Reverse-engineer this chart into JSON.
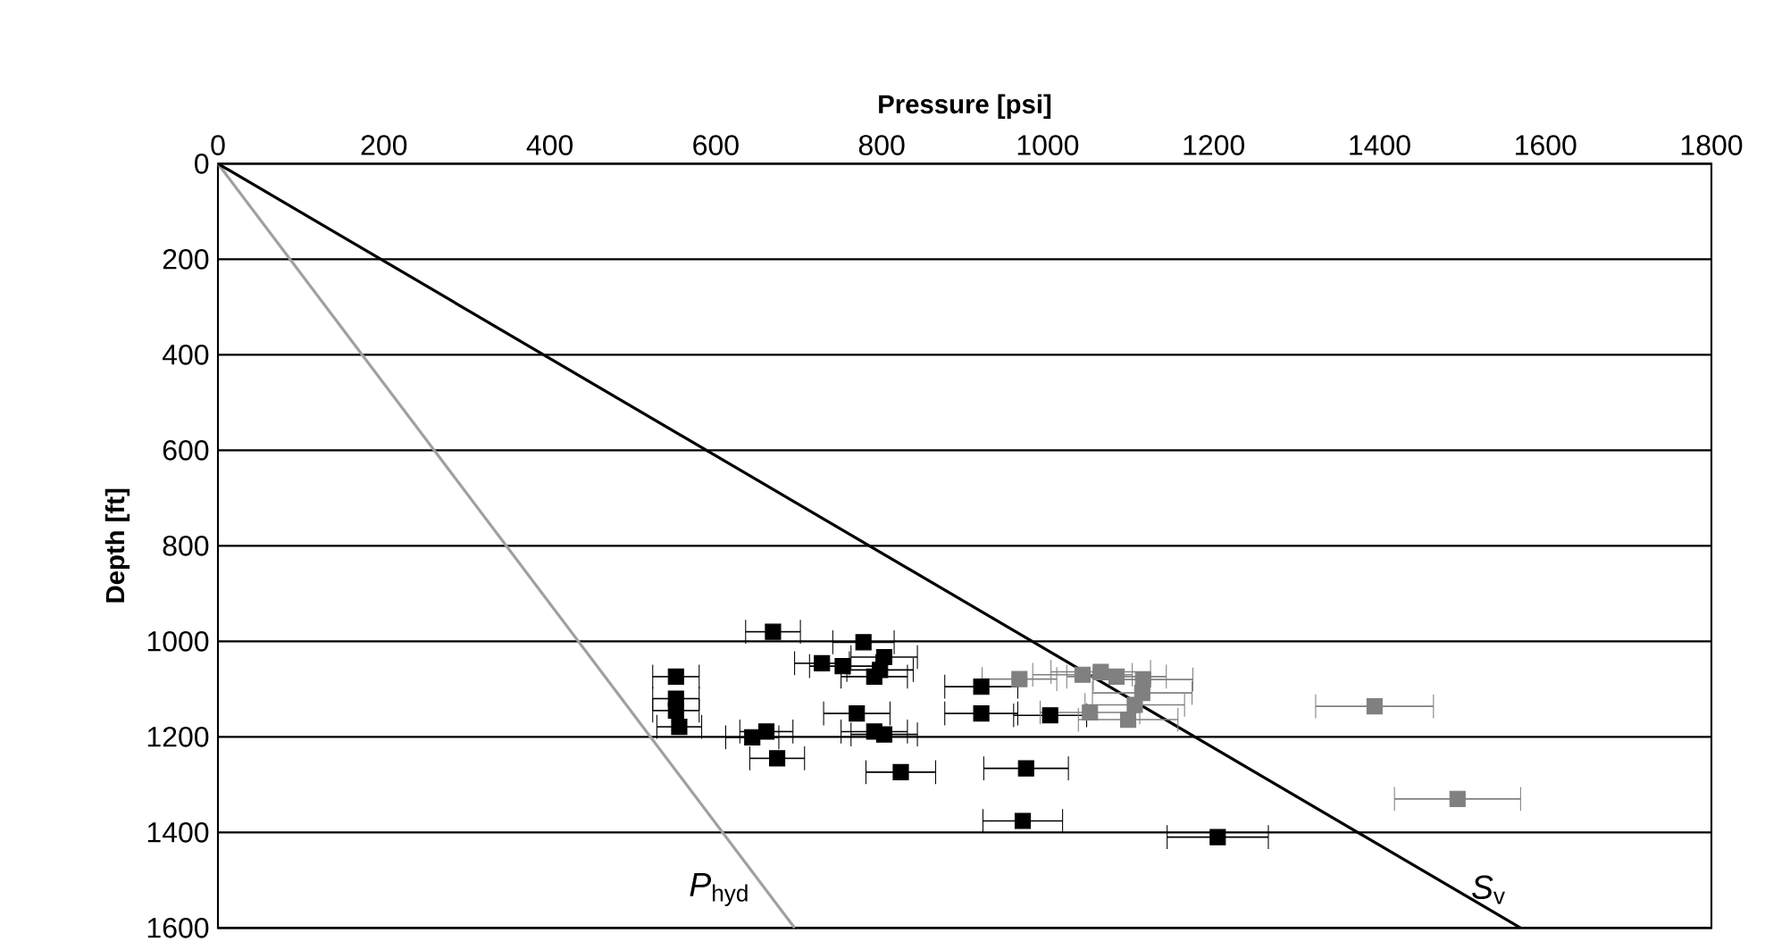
{
  "chart_data": {
    "type": "scatter",
    "xlabel": "Pressure [psi]",
    "ylabel": "Depth [ft]",
    "xlim": [
      0,
      1800
    ],
    "xticks": [
      0,
      200,
      400,
      600,
      800,
      1000,
      1200,
      1400,
      1600,
      1800
    ],
    "ylim": [
      1600,
      0
    ],
    "yticks": [
      0,
      200,
      400,
      600,
      800,
      1000,
      1200,
      1400,
      1600
    ],
    "grid": "y",
    "marker": "square",
    "series": [
      {
        "name": "*P*$_{hyd}$",
        "type": "line",
        "marker": "none",
        "color": "#a0a0a0",
        "x": [
          0,
          695
        ],
        "values": [
          0,
          1600
        ]
      },
      {
        "name": "*S*$_{v}$",
        "type": "line",
        "marker": "none",
        "color": "#000000",
        "x": [
          0,
          1570
        ],
        "values": [
          0,
          1600
        ]
      },
      {
        "type": "scatter",
        "color": "#000000",
        "x": [
          669,
          778,
          728,
          753,
          803,
          798,
          791,
          552,
          552,
          552,
          556,
          644,
          661,
          674,
          770,
          791,
          803,
          823,
          920,
          920,
          1003,
          974,
          970,
          1205
        ],
        "values": [
          980,
          1002,
          1046,
          1052,
          1033,
          1060,
          1074,
          1074,
          1120,
          1145,
          1179,
          1201,
          1189,
          1245,
          1151,
          1189,
          1195,
          1274,
          1095,
          1151,
          1155,
          1266,
          1376,
          1410
        ],
        "xerrors": [
          33,
          37,
          33,
          40,
          40,
          40,
          40,
          28,
          28,
          28,
          27,
          32,
          32,
          33,
          40,
          40,
          40,
          42,
          44,
          44,
          44,
          51,
          48,
          61
        ]
      },
      {
        "type": "scatter",
        "color": "#808080",
        "x": [
          966,
          1042,
          1064,
          1083,
          1115,
          1114,
          1105,
          1097,
          1051,
          1394,
          1494
        ],
        "values": [
          1079,
          1070,
          1064,
          1074,
          1080,
          1108,
          1133,
          1164,
          1149,
          1136,
          1330
        ],
        "xerrors": [
          45,
          60,
          60,
          60,
          60,
          60,
          60,
          60,
          60,
          71,
          76
        ]
      }
    ]
  }
}
